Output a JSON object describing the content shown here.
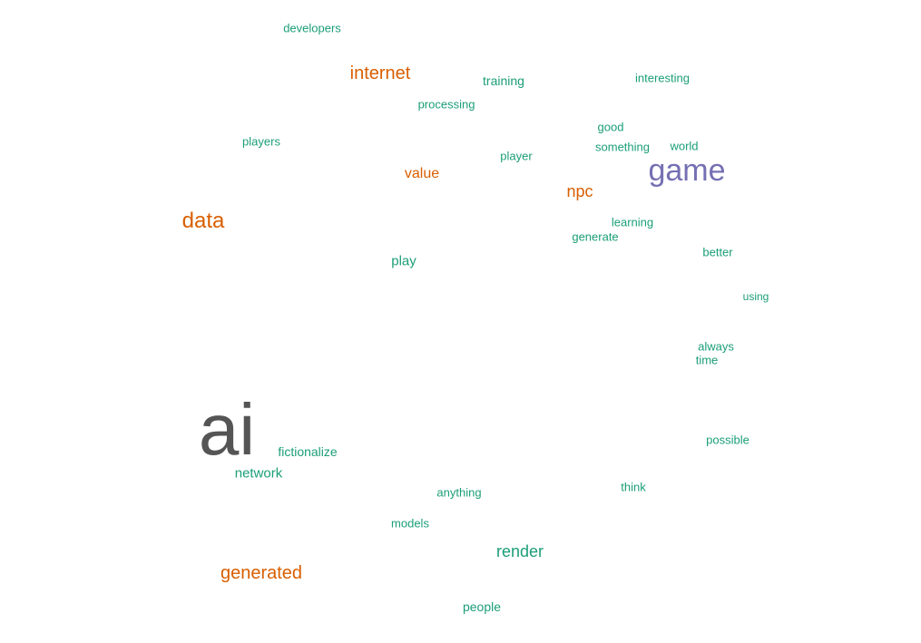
{
  "colors": {
    "background": "#ffffff",
    "small_words": "#1b9e77",
    "orange_words": "#d95f02",
    "purple_words": "#7570b3",
    "largest_word": "#555555"
  },
  "words": [
    {
      "t": "ai",
      "c": "gray"
    },
    {
      "t": "game",
      "c": "purple"
    },
    {
      "t": "data",
      "c": "orange"
    },
    {
      "t": "generated",
      "c": "orange"
    },
    {
      "t": "internet",
      "c": "orange"
    },
    {
      "t": "value",
      "c": "orange"
    },
    {
      "t": "npc",
      "c": "orange"
    },
    {
      "t": "render",
      "c": "green"
    },
    {
      "t": "network",
      "c": "green"
    },
    {
      "t": "play",
      "c": "green"
    },
    {
      "t": "fictionalize",
      "c": "green"
    },
    {
      "t": "player",
      "c": "green"
    },
    {
      "t": "developers",
      "c": "green"
    },
    {
      "t": "training",
      "c": "green"
    },
    {
      "t": "players",
      "c": "green"
    },
    {
      "t": "processing",
      "c": "green"
    },
    {
      "t": "interesting",
      "c": "green"
    },
    {
      "t": "good",
      "c": "green"
    },
    {
      "t": "world",
      "c": "green"
    },
    {
      "t": "something",
      "c": "green"
    },
    {
      "t": "generate",
      "c": "green"
    },
    {
      "t": "learning",
      "c": "green"
    },
    {
      "t": "time",
      "c": "green"
    },
    {
      "t": "people",
      "c": "green"
    },
    {
      "t": "models",
      "c": "green"
    },
    {
      "t": "think",
      "c": "green"
    },
    {
      "t": "anything",
      "c": "green"
    },
    {
      "t": "possible",
      "c": "green"
    },
    {
      "t": "always",
      "c": "green"
    },
    {
      "t": "better",
      "c": "green"
    },
    {
      "t": "using",
      "c": "green"
    }
  ]
}
